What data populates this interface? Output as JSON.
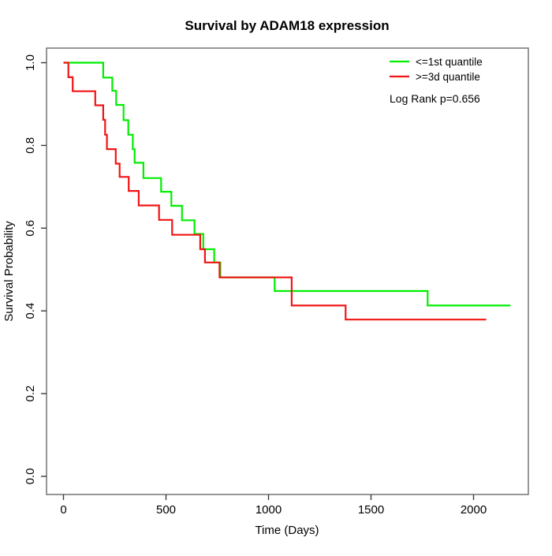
{
  "title": "Survival by ADAM18 expression",
  "axes": {
    "x": {
      "label": "Time (Days)",
      "tick_labels": [
        "0",
        "500",
        "1000",
        "1500",
        "2000"
      ],
      "tick_values": [
        0,
        500,
        1000,
        1500,
        2000
      ],
      "range": [
        0,
        2250
      ]
    },
    "y": {
      "label": "Survival Probability",
      "tick_labels": [
        "0.0",
        "0.2",
        "0.4",
        "0.6",
        "0.8",
        "1.0"
      ],
      "tick_values": [
        0,
        0.2,
        0.4,
        0.6,
        0.8,
        1.0
      ],
      "range": [
        0,
        1
      ]
    }
  },
  "legend": {
    "items": [
      {
        "label": "<=1st quantile",
        "color": "#00ee00"
      },
      {
        "label": ">=3d quantile",
        "color": "#f21414"
      }
    ]
  },
  "annotation": {
    "log_rank": "Log Rank p=0.656"
  },
  "frame_color": "#7d7d7d",
  "tick_color": "#3a3a3a",
  "chart_data": {
    "type": "line",
    "subtype": "kaplan-meier-step",
    "title": "Survival by ADAM18 expression",
    "xlabel": "Time (Days)",
    "ylabel": "Survival Probability",
    "xlim": [
      0,
      2250
    ],
    "ylim": [
      0,
      1
    ],
    "grid": false,
    "legend_position": "top-right",
    "annotations": [
      "Log Rank p=0.656"
    ],
    "series": [
      {
        "name": "<=1st quantile",
        "color": "#00ee00",
        "end_time": 2180,
        "points": [
          [
            0,
            1.0
          ],
          [
            194,
            0.964
          ],
          [
            238,
            0.932
          ],
          [
            257,
            0.898
          ],
          [
            293,
            0.861
          ],
          [
            316,
            0.826
          ],
          [
            338,
            0.791
          ],
          [
            347,
            0.758
          ],
          [
            390,
            0.721
          ],
          [
            476,
            0.688
          ],
          [
            526,
            0.654
          ],
          [
            578,
            0.619
          ],
          [
            639,
            0.586
          ],
          [
            682,
            0.549
          ],
          [
            735,
            0.517
          ],
          [
            765,
            0.481
          ],
          [
            1030,
            0.448
          ],
          [
            1776,
            0.413
          ]
        ]
      },
      {
        "name": ">=3d quantile",
        "color": "#f21414",
        "end_time": 2062,
        "points": [
          [
            0,
            1.0
          ],
          [
            24,
            0.965
          ],
          [
            45,
            0.931
          ],
          [
            155,
            0.897
          ],
          [
            194,
            0.862
          ],
          [
            203,
            0.826
          ],
          [
            212,
            0.791
          ],
          [
            255,
            0.756
          ],
          [
            274,
            0.724
          ],
          [
            318,
            0.69
          ],
          [
            367,
            0.655
          ],
          [
            466,
            0.62
          ],
          [
            530,
            0.584
          ],
          [
            667,
            0.549
          ],
          [
            690,
            0.517
          ],
          [
            761,
            0.481
          ],
          [
            1113,
            0.413
          ],
          [
            1376,
            0.379
          ]
        ]
      }
    ]
  }
}
